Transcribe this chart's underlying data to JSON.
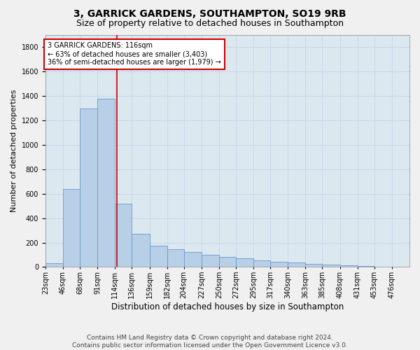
{
  "title1": "3, GARRICK GARDENS, SOUTHAMPTON, SO19 9RB",
  "title2": "Size of property relative to detached houses in Southampton",
  "xlabel": "Distribution of detached houses by size in Southampton",
  "ylabel": "Number of detached properties",
  "footer1": "Contains HM Land Registry data © Crown copyright and database right 2024.",
  "footer2": "Contains public sector information licensed under the Open Government Licence v3.0.",
  "annotation_line1": "3 GARRICK GARDENS: 116sqm",
  "annotation_line2": "← 63% of detached houses are smaller (3,403)",
  "annotation_line3": "36% of semi-detached houses are larger (1,979) →",
  "bar_color": "#b8cfe8",
  "bar_edge_color": "#6699cc",
  "red_line_x": 116,
  "bin_edges": [
    23,
    46,
    68,
    91,
    114,
    136,
    159,
    182,
    204,
    227,
    250,
    272,
    295,
    317,
    340,
    363,
    385,
    408,
    431,
    453,
    476,
    499
  ],
  "bar_heights": [
    30,
    640,
    1300,
    1380,
    520,
    270,
    175,
    145,
    120,
    100,
    80,
    70,
    55,
    45,
    35,
    25,
    20,
    15,
    10,
    5,
    5
  ],
  "ylim": [
    0,
    1900
  ],
  "yticks": [
    0,
    200,
    400,
    600,
    800,
    1000,
    1200,
    1400,
    1600,
    1800
  ],
  "grid_color": "#c8d8e8",
  "background_color": "#dce8f0",
  "fig_background": "#f0f0f0",
  "annotation_box_color": "#ffffff",
  "annotation_box_edge": "#cc0000",
  "red_line_color": "#cc0000",
  "title1_fontsize": 10,
  "title2_fontsize": 9,
  "xlabel_fontsize": 8.5,
  "ylabel_fontsize": 8,
  "tick_fontsize": 7,
  "footer_fontsize": 6.5
}
